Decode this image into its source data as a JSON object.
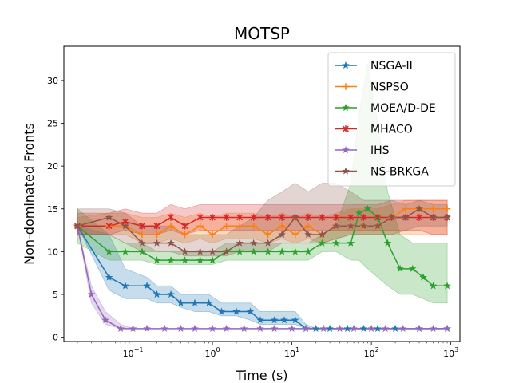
{
  "chart_data": {
    "type": "line",
    "title": "MOTSP",
    "xlabel": "Time (s)",
    "ylabel": "Non-dominated Fronts",
    "xscale": "log",
    "xlim": [
      0.0135,
      1300
    ],
    "ylim": [
      -0.5,
      34
    ],
    "xticks": [
      {
        "value": 0.1,
        "base": "10",
        "exp": "−1"
      },
      {
        "value": 1,
        "base": "10",
        "exp": "0"
      },
      {
        "value": 10,
        "base": "10",
        "exp": "1"
      },
      {
        "value": 100,
        "base": "10",
        "exp": "2"
      },
      {
        "value": 1000,
        "base": "10",
        "exp": "3"
      }
    ],
    "yticks": [
      {
        "value": 0,
        "label": "0"
      },
      {
        "value": 5,
        "label": "5"
      },
      {
        "value": 10,
        "label": "10"
      },
      {
        "value": 15,
        "label": "15"
      },
      {
        "value": 20,
        "label": "20"
      },
      {
        "value": 25,
        "label": "25"
      },
      {
        "value": 30,
        "label": "30"
      }
    ],
    "grid": false,
    "legend_position": "top-right",
    "series": [
      {
        "name": "NSGA-II",
        "color": "#1f77b4",
        "marker": "star",
        "x": [
          0.02,
          0.05,
          0.08,
          0.15,
          0.2,
          0.3,
          0.4,
          0.6,
          0.9,
          1.3,
          2,
          3,
          4,
          6,
          8,
          11,
          15,
          20,
          30,
          50,
          80,
          120,
          200,
          400,
          900
        ],
        "y": [
          13,
          7,
          6,
          6,
          5,
          5,
          4,
          4,
          4,
          3,
          3,
          3,
          2,
          2,
          2,
          2,
          1,
          1,
          1,
          1,
          1,
          1,
          1,
          1,
          1
        ],
        "lower": [
          13,
          5.5,
          4.5,
          4.5,
          4,
          4,
          3.5,
          3,
          3,
          2.5,
          2.5,
          2,
          1.5,
          1.5,
          1.5,
          1.5,
          1,
          1,
          1,
          1,
          1,
          1,
          1,
          1,
          1
        ],
        "upper": [
          13,
          12,
          8,
          7,
          6,
          6,
          5,
          5,
          5,
          4,
          4,
          4,
          3,
          3,
          3,
          3,
          1.5,
          1,
          1,
          1,
          1,
          1,
          1,
          1,
          1
        ]
      },
      {
        "name": "NSPSO",
        "color": "#ff7f0e",
        "marker": "plus",
        "x": [
          0.02,
          0.05,
          0.08,
          0.13,
          0.2,
          0.3,
          0.45,
          0.7,
          1,
          1.5,
          2.2,
          3.3,
          5,
          7.5,
          11,
          16,
          24,
          36,
          55,
          80,
          120,
          180,
          270,
          400,
          600,
          900
        ],
        "y": [
          13,
          13,
          13,
          12,
          12,
          13,
          12,
          13,
          12,
          13,
          13,
          13,
          12,
          13,
          12,
          13,
          12,
          13,
          13,
          13,
          13,
          14,
          15,
          15,
          15,
          15
        ],
        "lower": [
          12,
          12,
          12,
          11,
          11,
          11.5,
          11,
          11.5,
          11,
          11.5,
          11.5,
          11.5,
          11,
          11.5,
          11,
          11.5,
          11,
          11.5,
          12,
          12,
          12,
          12,
          12,
          12,
          12,
          12
        ],
        "upper": [
          14,
          14.5,
          14.5,
          14,
          14,
          14.5,
          14,
          14.5,
          14,
          14.5,
          14.5,
          14.5,
          14,
          14.5,
          14,
          14.5,
          14,
          14.5,
          15,
          15,
          15,
          15.5,
          16,
          16,
          16,
          16
        ]
      },
      {
        "name": "MOEA/D-DE",
        "color": "#2ca02c",
        "marker": "star",
        "x": [
          0.02,
          0.05,
          0.08,
          0.13,
          0.2,
          0.3,
          0.45,
          0.7,
          1,
          1.5,
          2.2,
          3.3,
          5,
          7.5,
          11,
          16,
          24,
          36,
          55,
          70,
          90,
          120,
          160,
          230,
          330,
          450,
          600,
          900
        ],
        "y": [
          13,
          10,
          10,
          10,
          9,
          9,
          9,
          9,
          9,
          10,
          10,
          10,
          10,
          10,
          10,
          10,
          11,
          11,
          11,
          14.5,
          15,
          14,
          11,
          8,
          8,
          7,
          6,
          6
        ],
        "lower": [
          11,
          9,
          9,
          9,
          8.5,
          8.5,
          8.5,
          8.5,
          8.5,
          9,
          9,
          9,
          9,
          9,
          9,
          9,
          10,
          10,
          9,
          9,
          8,
          7,
          6,
          5,
          5,
          4.5,
          4,
          4
        ],
        "upper": [
          15,
          12,
          11,
          11,
          10,
          10,
          10,
          10,
          10,
          11,
          11,
          11,
          11,
          11,
          11,
          11,
          12,
          13,
          18,
          26,
          32,
          25,
          17,
          12,
          11,
          11,
          11,
          11
        ]
      },
      {
        "name": "MHACO",
        "color": "#d62728",
        "marker": "x",
        "x": [
          0.02,
          0.05,
          0.08,
          0.13,
          0.2,
          0.3,
          0.45,
          0.7,
          1,
          1.5,
          2.2,
          3.3,
          5,
          7.5,
          11,
          16,
          24,
          36,
          55,
          80,
          120,
          180,
          270,
          400,
          600,
          900
        ],
        "y": [
          13,
          13,
          13.5,
          13,
          13,
          14,
          13,
          14,
          14,
          14,
          14,
          14,
          14,
          14,
          14,
          14,
          14,
          14,
          14,
          14,
          14,
          14,
          14,
          14,
          14,
          14
        ],
        "lower": [
          12,
          12,
          12.5,
          12,
          12,
          12.5,
          12,
          12.5,
          12.5,
          12.5,
          12.5,
          12.5,
          12.5,
          12.5,
          12.5,
          12.5,
          12.5,
          12.5,
          12.5,
          12.5,
          12.5,
          12.5,
          12.5,
          12.5,
          12,
          12
        ],
        "upper": [
          14.5,
          14.5,
          15,
          14.5,
          14.5,
          15.5,
          15,
          15.5,
          15.5,
          15.5,
          15.5,
          15.5,
          15.5,
          15.5,
          15.5,
          15.5,
          15.5,
          15.5,
          15.5,
          15.5,
          15.5,
          16,
          16,
          16,
          16,
          16
        ]
      },
      {
        "name": "IHS",
        "color": "#9467bd",
        "marker": "star",
        "x": [
          0.02,
          0.03,
          0.045,
          0.07,
          0.1,
          0.15,
          0.25,
          0.4,
          0.6,
          1,
          1.5,
          2.5,
          4,
          6,
          10,
          15,
          25,
          40,
          60,
          100,
          150,
          250,
          400,
          600,
          900
        ],
        "y": [
          13,
          5,
          2,
          1,
          1,
          1,
          1,
          1,
          1,
          1,
          1,
          1,
          1,
          1,
          1,
          1,
          1,
          1,
          1,
          1,
          1,
          1,
          1,
          1,
          1
        ],
        "lower": [
          13,
          4,
          1.5,
          1,
          1,
          1,
          1,
          1,
          1,
          1,
          1,
          1,
          1,
          1,
          1,
          1,
          1,
          1,
          1,
          1,
          1,
          1,
          1,
          1,
          1
        ],
        "upper": [
          13,
          6,
          3,
          1.5,
          1,
          1,
          1,
          1,
          1,
          1,
          1,
          1,
          1,
          1,
          1,
          1,
          1,
          1,
          1,
          1,
          1,
          1,
          1,
          1,
          1
        ]
      },
      {
        "name": "NS-BRKGA",
        "color": "#8c564b",
        "marker": "star",
        "x": [
          0.02,
          0.05,
          0.08,
          0.13,
          0.2,
          0.3,
          0.45,
          0.7,
          1,
          1.5,
          2.2,
          3.3,
          5,
          7.5,
          11,
          16,
          24,
          36,
          55,
          80,
          120,
          180,
          270,
          400,
          600,
          900
        ],
        "y": [
          13,
          14,
          13,
          11,
          11,
          11,
          10,
          10,
          10,
          10,
          11,
          11,
          11,
          12,
          14,
          12,
          12,
          13,
          13,
          13,
          13,
          14,
          14,
          15,
          14,
          14
        ],
        "lower": [
          12,
          12,
          11,
          10,
          10,
          10,
          9.5,
          9.5,
          9.5,
          9.5,
          10,
          10,
          10,
          11,
          11,
          11,
          11,
          11.5,
          12,
          12,
          12,
          12,
          12.5,
          13,
          13,
          13
        ],
        "upper": [
          15,
          15,
          14.5,
          13,
          13,
          13,
          12,
          12,
          12,
          12,
          13,
          14,
          16,
          17,
          18,
          17,
          18,
          18,
          17,
          16,
          16,
          16,
          15.5,
          16,
          15.5,
          15.5
        ]
      }
    ]
  }
}
